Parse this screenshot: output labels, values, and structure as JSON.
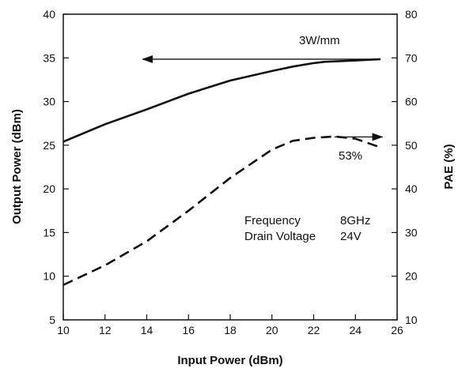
{
  "chart_data": {
    "type": "line",
    "xlabel": "Input Power (dBm)",
    "ylabel_left": "Output Power (dBm)",
    "ylabel_right": "PAE (%)",
    "xlim": [
      10,
      26
    ],
    "ylim_left": [
      5,
      40
    ],
    "ylim_right": [
      10,
      80
    ],
    "x_ticks": [
      "10",
      "12",
      "14",
      "16",
      "18",
      "20",
      "22",
      "24",
      "26"
    ],
    "y_left_ticks": [
      "5",
      "10",
      "15",
      "20",
      "25",
      "30",
      "35",
      "40"
    ],
    "y_right_ticks": [
      "10",
      "20",
      "30",
      "40",
      "50",
      "60",
      "70",
      "80"
    ],
    "grid": false,
    "series": [
      {
        "axis": "left",
        "style": "solid",
        "color": "#111111",
        "x": [
          10,
          12,
          14,
          16,
          18,
          20,
          21,
          22,
          22.5,
          23,
          24,
          25.2
        ],
        "y": [
          25.4,
          27.4,
          29.1,
          30.9,
          32.4,
          33.5,
          34.0,
          34.4,
          34.55,
          34.6,
          34.7,
          34.85
        ]
      },
      {
        "axis": "right",
        "style": "dashed",
        "color": "#111111",
        "x": [
          10,
          12,
          14,
          16,
          18,
          20,
          21,
          22,
          23,
          24,
          25.2
        ],
        "y": [
          18.0,
          22.5,
          28.0,
          35.0,
          42.5,
          49.0,
          51.0,
          51.7,
          52.0,
          51.5,
          49.5
        ]
      }
    ],
    "annotations": {
      "output_label": "3W/mm",
      "pae_label": "53%",
      "freq_label": "Frequency",
      "freq_value": "8GHz",
      "voltage_label": "Drain Voltage",
      "voltage_value": "24V"
    },
    "arrows": [
      {
        "from": [
          25.2,
          34.85
        ],
        "to": [
          13.8,
          34.85
        ],
        "axis": "left"
      },
      {
        "from": [
          23.0,
          51.9
        ],
        "to": [
          25.3,
          51.9
        ],
        "axis": "right"
      }
    ]
  }
}
